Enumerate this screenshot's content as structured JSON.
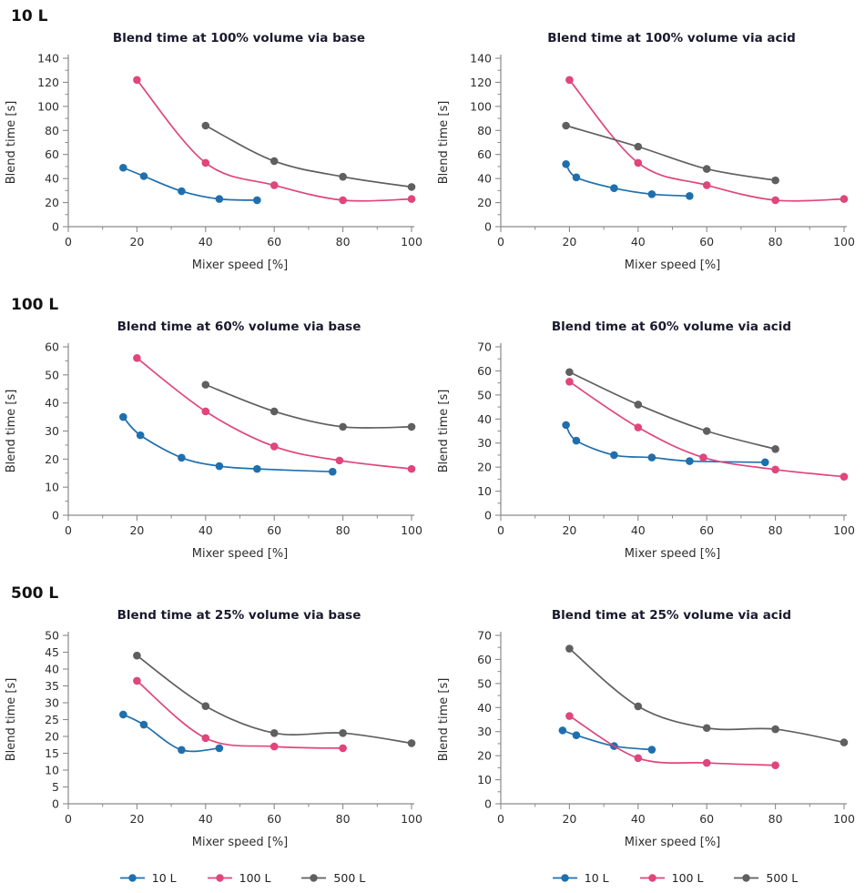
{
  "rows": [
    {
      "label": "10 L"
    },
    {
      "label": "100 L"
    },
    {
      "label": "500 L"
    }
  ],
  "legend": {
    "items": [
      {
        "label": "10 L",
        "color": "#1f6fad"
      },
      {
        "label": "100 L",
        "color": "#e0457b"
      },
      {
        "label": "500 L",
        "color": "#5f5f5f"
      }
    ]
  },
  "colors": {
    "axis": "#8a8a8a",
    "tick_label": "#2d2d2d",
    "title": "#1a1a2e"
  },
  "chart_data": [
    {
      "type": "line",
      "title": "Blend time at 100% volume via base",
      "xlabel": "Mixer speed [%]",
      "ylabel": "Blend time [s]",
      "xlim": [
        0,
        100
      ],
      "xstep": 20,
      "x_minor": true,
      "ylim": [
        0,
        140
      ],
      "ystep": 20,
      "y_minor": true,
      "series": [
        {
          "name": "10 L",
          "color": "#1f6fad",
          "x": [
            16,
            22,
            33,
            44,
            55
          ],
          "y": [
            49,
            42,
            29.5,
            23,
            22
          ]
        },
        {
          "name": "100 L",
          "color": "#e0457b",
          "x": [
            20,
            40,
            60,
            80,
            100
          ],
          "y": [
            122,
            53,
            34.5,
            22,
            23
          ]
        },
        {
          "name": "500 L",
          "color": "#5f5f5f",
          "x": [
            40,
            60,
            80,
            100
          ],
          "y": [
            84,
            54.5,
            41.5,
            33
          ]
        }
      ]
    },
    {
      "type": "line",
      "title": "Blend time at 100% volume via acid",
      "xlabel": "Mixer speed [%]",
      "ylabel": "Blend time [s]",
      "xlim": [
        0,
        100
      ],
      "xstep": 20,
      "x_minor": true,
      "ylim": [
        0,
        140
      ],
      "ystep": 20,
      "y_minor": true,
      "series": [
        {
          "name": "10 L",
          "color": "#1f6fad",
          "x": [
            19,
            22,
            33,
            44,
            55
          ],
          "y": [
            52,
            41,
            32,
            27,
            25.5
          ]
        },
        {
          "name": "100 L",
          "color": "#e0457b",
          "x": [
            20,
            40,
            60,
            80,
            100
          ],
          "y": [
            122,
            53,
            34.5,
            22,
            23
          ]
        },
        {
          "name": "500 L",
          "color": "#5f5f5f",
          "x": [
            19,
            40,
            60,
            80
          ],
          "y": [
            84,
            66.5,
            48,
            38.5
          ]
        }
      ]
    },
    {
      "type": "line",
      "title": "Blend time at 60% volume via base",
      "xlabel": "Mixer speed [%]",
      "ylabel": "Blend time [s]",
      "xlim": [
        0,
        100
      ],
      "xstep": 20,
      "x_minor": true,
      "ylim": [
        0,
        60
      ],
      "ystep": 10,
      "y_minor": true,
      "series": [
        {
          "name": "10 L",
          "color": "#1f6fad",
          "x": [
            16,
            21,
            33,
            44,
            55,
            77
          ],
          "y": [
            35,
            28.5,
            20.5,
            17.5,
            16.5,
            15.5
          ]
        },
        {
          "name": "100 L",
          "color": "#e0457b",
          "x": [
            20,
            40,
            60,
            79,
            100
          ],
          "y": [
            56,
            37,
            24.5,
            19.5,
            16.5
          ]
        },
        {
          "name": "500 L",
          "color": "#5f5f5f",
          "x": [
            40,
            60,
            80,
            100
          ],
          "y": [
            46.5,
            37,
            31.5,
            31.5
          ]
        }
      ]
    },
    {
      "type": "line",
      "title": "Blend time at 60% volume via acid",
      "xlabel": "Mixer speed [%]",
      "ylabel": "Blend time [s]",
      "xlim": [
        0,
        100
      ],
      "xstep": 20,
      "x_minor": true,
      "ylim": [
        0,
        70
      ],
      "ystep": 10,
      "y_minor": true,
      "series": [
        {
          "name": "10 L",
          "color": "#1f6fad",
          "x": [
            19,
            22,
            33,
            44,
            55,
            77
          ],
          "y": [
            37.5,
            31,
            25,
            24,
            22.5,
            22
          ]
        },
        {
          "name": "100 L",
          "color": "#e0457b",
          "x": [
            20,
            40,
            59,
            80,
            100
          ],
          "y": [
            55.5,
            36.5,
            24,
            19,
            16
          ]
        },
        {
          "name": "500 L",
          "color": "#5f5f5f",
          "x": [
            20,
            40,
            60,
            80
          ],
          "y": [
            59.5,
            46,
            35,
            27.5
          ]
        }
      ]
    },
    {
      "type": "line",
      "title": "Blend time at 25% volume via base",
      "xlabel": "Mixer speed [%]",
      "ylabel": "Blend time [s]",
      "xlim": [
        0,
        100
      ],
      "xstep": 20,
      "x_minor": true,
      "ylim": [
        0,
        50
      ],
      "ystep": 5,
      "y_minor": false,
      "series": [
        {
          "name": "10 L",
          "color": "#1f6fad",
          "x": [
            16,
            22,
            33,
            44
          ],
          "y": [
            26.5,
            23.5,
            16,
            16.5
          ]
        },
        {
          "name": "100 L",
          "color": "#e0457b",
          "x": [
            20,
            40,
            60,
            80
          ],
          "y": [
            36.5,
            19.5,
            17,
            16.5
          ]
        },
        {
          "name": "500 L",
          "color": "#5f5f5f",
          "x": [
            20,
            40,
            60,
            80,
            100
          ],
          "y": [
            44,
            29,
            21,
            21,
            18
          ]
        }
      ]
    },
    {
      "type": "line",
      "title": "Blend time at 25% volume via acid",
      "xlabel": "Mixer speed [%]",
      "ylabel": "Blend time [s]",
      "xlim": [
        0,
        100
      ],
      "xstep": 20,
      "x_minor": true,
      "ylim": [
        0,
        70
      ],
      "ystep": 10,
      "y_minor": true,
      "series": [
        {
          "name": "10 L",
          "color": "#1f6fad",
          "x": [
            18,
            22,
            33,
            44
          ],
          "y": [
            30.5,
            28.5,
            24,
            22.5
          ]
        },
        {
          "name": "100 L",
          "color": "#e0457b",
          "x": [
            20,
            40,
            60,
            80
          ],
          "y": [
            36.5,
            19,
            17,
            16
          ]
        },
        {
          "name": "500 L",
          "color": "#5f5f5f",
          "x": [
            20,
            40,
            60,
            80,
            100
          ],
          "y": [
            64.5,
            40.5,
            31.5,
            31,
            25.5
          ]
        }
      ]
    }
  ]
}
